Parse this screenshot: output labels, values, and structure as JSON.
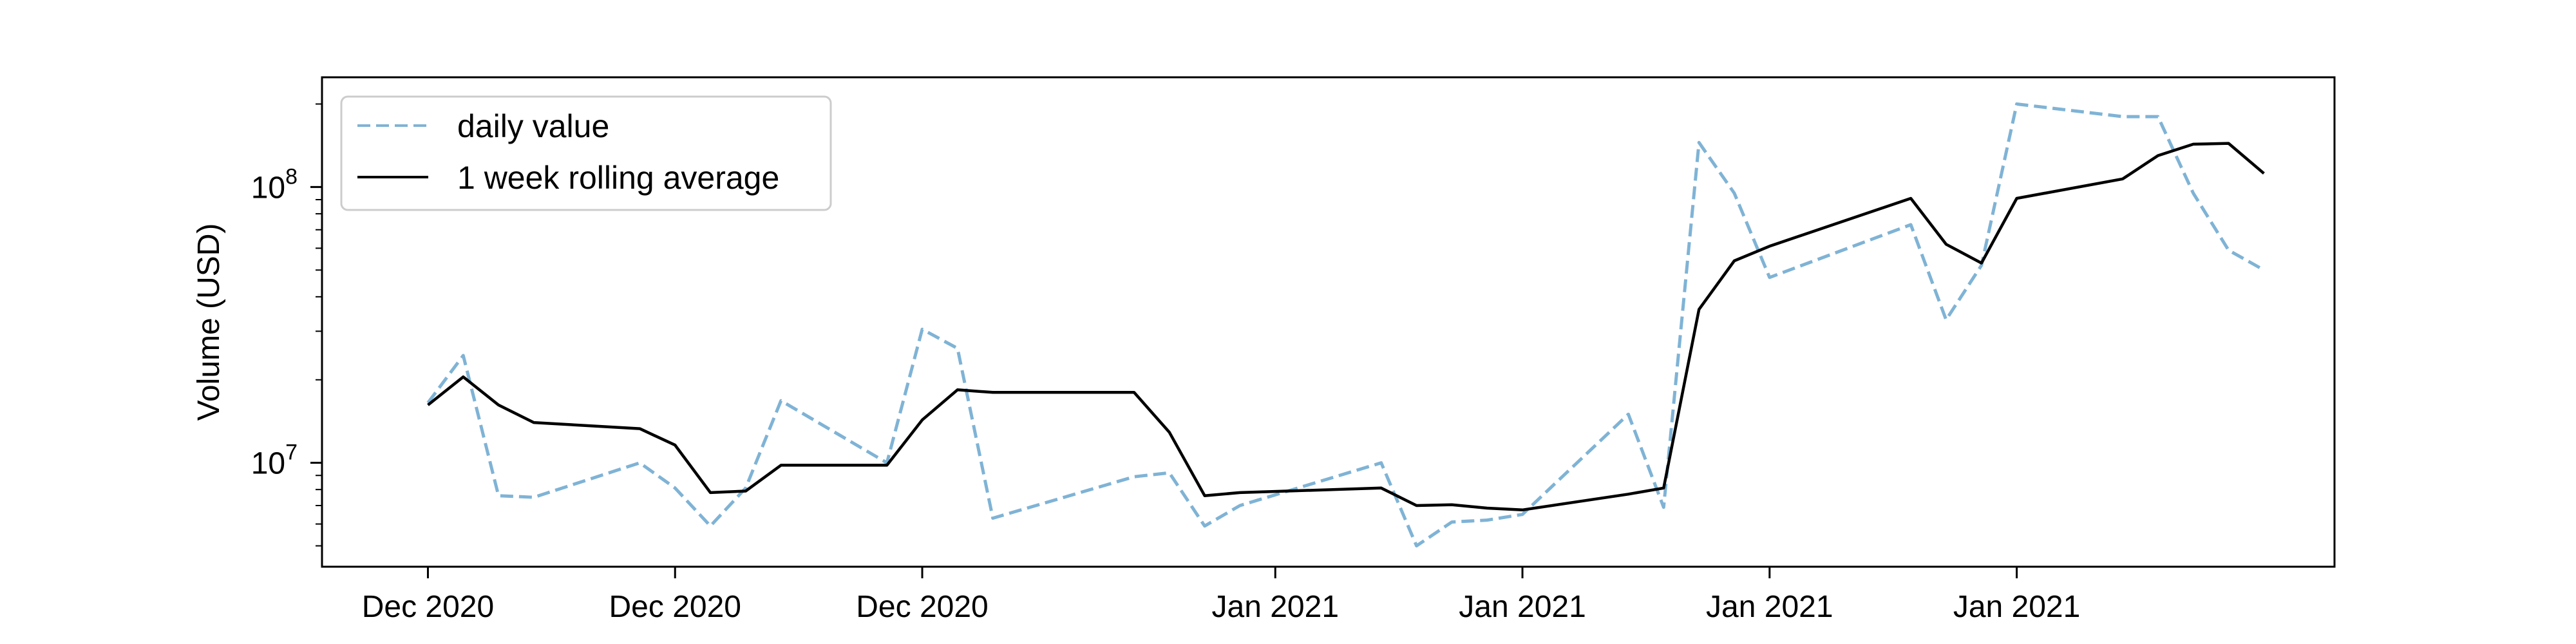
{
  "chart_data": {
    "type": "line",
    "title": "",
    "xlabel": "",
    "ylabel": "Volume (USD)",
    "yscale": "log",
    "ylim": [
      4200000,
      250000000
    ],
    "y_ticks": [
      {
        "value": 10000000,
        "base": "10",
        "exp": "7"
      },
      {
        "value": 100000000,
        "base": "10",
        "exp": "8"
      }
    ],
    "x_ticks": [
      {
        "label": "Dec 2020",
        "date": "2020-12-01"
      },
      {
        "label": "Dec 2020",
        "date": "2020-12-08"
      },
      {
        "label": "Dec 2020",
        "date": "2020-12-15"
      },
      {
        "label": "Jan 2021",
        "date": "2020-12-25"
      },
      {
        "label": "Jan 2021",
        "date": "2021-01-01"
      },
      {
        "label": "Jan 2021",
        "date": "2021-01-08"
      },
      {
        "label": "Jan 2021",
        "date": "2021-01-15"
      }
    ],
    "xlim": [
      "2020-11-28",
      "2021-01-24"
    ],
    "grid": false,
    "legend": {
      "position": "upper-left"
    },
    "series": [
      {
        "name": "daily value",
        "color": "#7fb3d5",
        "style": "dashed",
        "points": [
          [
            "2020-12-01",
            16500000
          ],
          [
            "2020-12-02",
            24500000
          ],
          [
            "2020-12-03",
            7600000
          ],
          [
            "2020-12-04",
            7500000
          ],
          [
            "2020-12-07",
            10000000
          ],
          [
            "2020-12-08",
            8100000
          ],
          [
            "2020-12-09",
            5900000
          ],
          [
            "2020-12-10",
            8100000
          ],
          [
            "2020-12-11",
            16800000
          ],
          [
            "2020-12-14",
            10000000
          ],
          [
            "2020-12-15",
            30500000
          ],
          [
            "2020-12-16",
            26000000
          ],
          [
            "2020-12-17",
            6300000
          ],
          [
            "2020-12-21",
            8900000
          ],
          [
            "2020-12-22",
            9200000
          ],
          [
            "2020-12-23",
            5900000
          ],
          [
            "2020-12-24",
            7000000
          ],
          [
            "2020-12-28",
            10000000
          ],
          [
            "2020-12-29",
            5000000
          ],
          [
            "2020-12-30",
            6100000
          ],
          [
            "2020-12-31",
            6200000
          ],
          [
            "2021-01-01",
            6500000
          ],
          [
            "2021-01-04",
            15000000
          ],
          [
            "2021-01-05",
            6900000
          ],
          [
            "2021-01-06",
            145000000
          ],
          [
            "2021-01-07",
            95000000
          ],
          [
            "2021-01-08",
            47000000
          ],
          [
            "2021-01-12",
            73000000
          ],
          [
            "2021-01-13",
            33000000
          ],
          [
            "2021-01-14",
            52000000
          ],
          [
            "2021-01-15",
            200000000
          ],
          [
            "2021-01-18",
            180000000
          ],
          [
            "2021-01-19",
            180000000
          ],
          [
            "2021-01-20",
            95000000
          ],
          [
            "2021-01-21",
            59000000
          ],
          [
            "2021-01-22",
            50000000
          ]
        ]
      },
      {
        "name": "1 week rolling average",
        "color": "#000000",
        "style": "solid",
        "points": [
          [
            "2020-12-01",
            16200000
          ],
          [
            "2020-12-02",
            20500000
          ],
          [
            "2020-12-03",
            16200000
          ],
          [
            "2020-12-04",
            14000000
          ],
          [
            "2020-12-07",
            13300000
          ],
          [
            "2020-12-08",
            11600000
          ],
          [
            "2020-12-09",
            7800000
          ],
          [
            "2020-12-10",
            7900000
          ],
          [
            "2020-12-11",
            9800000
          ],
          [
            "2020-12-14",
            9800000
          ],
          [
            "2020-12-15",
            14300000
          ],
          [
            "2020-12-16",
            18400000
          ],
          [
            "2020-12-17",
            18000000
          ],
          [
            "2020-12-21",
            18000000
          ],
          [
            "2020-12-22",
            12900000
          ],
          [
            "2020-12-23",
            7600000
          ],
          [
            "2020-12-24",
            7800000
          ],
          [
            "2020-12-28",
            8100000
          ],
          [
            "2020-12-29",
            7000000
          ],
          [
            "2020-12-30",
            7050000
          ],
          [
            "2020-12-31",
            6850000
          ],
          [
            "2021-01-01",
            6750000
          ],
          [
            "2021-01-04",
            7700000
          ],
          [
            "2021-01-05",
            8100000
          ],
          [
            "2021-01-06",
            36000000
          ],
          [
            "2021-01-07",
            54000000
          ],
          [
            "2021-01-08",
            61000000
          ],
          [
            "2021-01-12",
            91000000
          ],
          [
            "2021-01-13",
            62000000
          ],
          [
            "2021-01-14",
            53000000
          ],
          [
            "2021-01-15",
            91000000
          ],
          [
            "2021-01-18",
            107000000
          ],
          [
            "2021-01-19",
            130000000
          ],
          [
            "2021-01-20",
            143000000
          ],
          [
            "2021-01-21",
            144000000
          ],
          [
            "2021-01-22",
            112000000
          ]
        ]
      }
    ]
  }
}
